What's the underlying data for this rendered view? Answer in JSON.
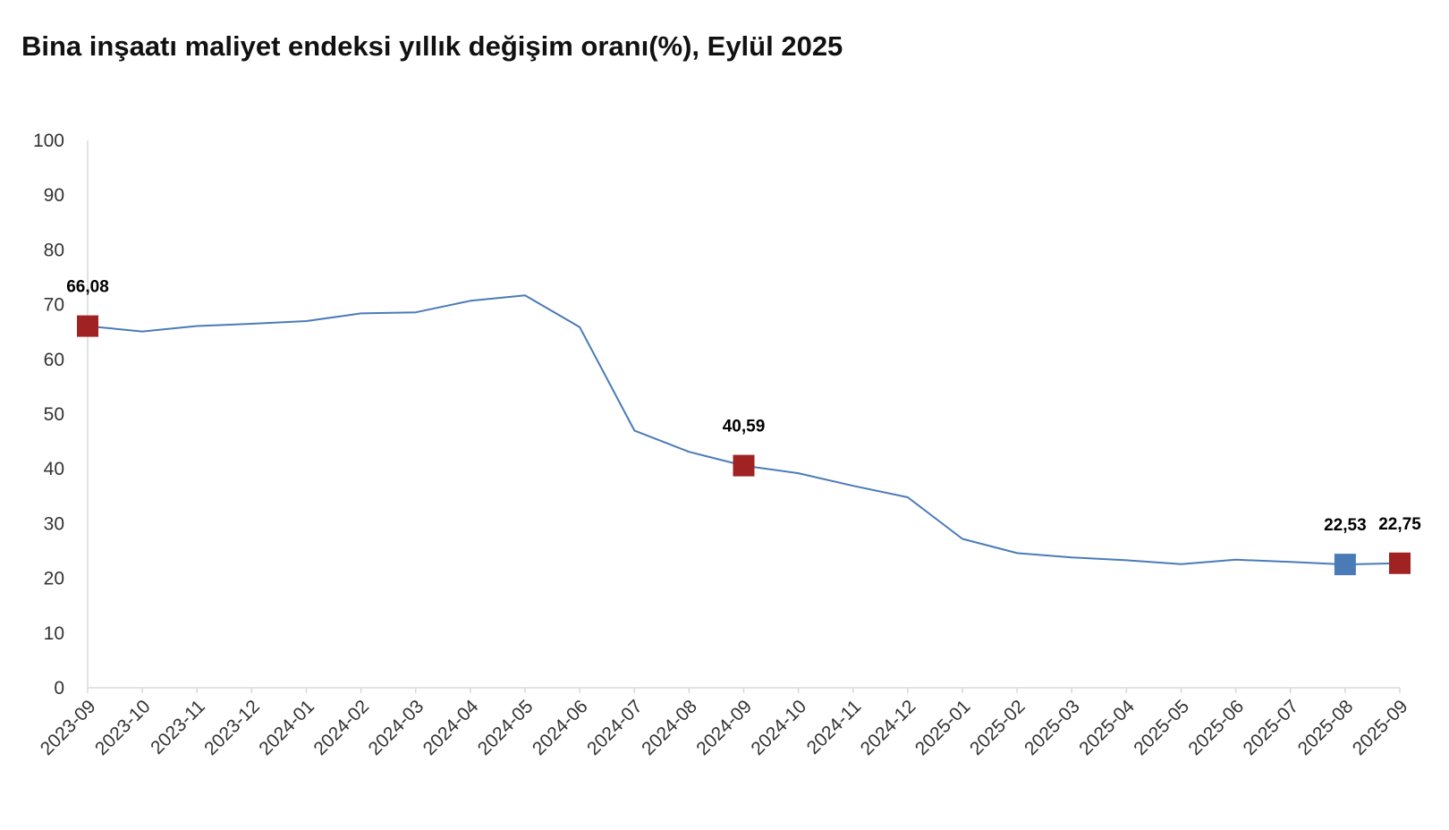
{
  "title": "Bina inşaatı maliyet endeksi yıllık değişim oranı(%), Eylül 2025",
  "colors": {
    "line": "#4a7bb7",
    "highlight_red": "#a02222",
    "highlight_blue": "#4a7bb7",
    "axis": "#d9d9d9",
    "text": "#333333",
    "label": "#000000"
  },
  "chart_data": {
    "type": "line",
    "title": "Bina inşaatı maliyet endeksi yıllık değişim oranı(%), Eylül 2025",
    "xlabel": "",
    "ylabel": "",
    "ylim": [
      0,
      100
    ],
    "yticks": [
      0,
      10,
      20,
      30,
      40,
      50,
      60,
      70,
      80,
      90,
      100
    ],
    "grid": false,
    "categories": [
      "2023-09",
      "2023-10",
      "2023-11",
      "2023-12",
      "2024-01",
      "2024-02",
      "2024-03",
      "2024-04",
      "2024-05",
      "2024-06",
      "2024-07",
      "2024-08",
      "2024-09",
      "2024-10",
      "2024-11",
      "2024-12",
      "2025-01",
      "2025-02",
      "2025-03",
      "2025-04",
      "2025-05",
      "2025-06",
      "2025-07",
      "2025-08",
      "2025-09"
    ],
    "series": [
      {
        "values": [
          66.08,
          65.1,
          66.1,
          66.5,
          67.0,
          68.4,
          68.6,
          70.7,
          71.7,
          65.9,
          47.0,
          43.1,
          40.59,
          39.2,
          36.9,
          34.8,
          27.2,
          24.6,
          23.8,
          23.3,
          22.6,
          23.4,
          23.0,
          22.53,
          22.75
        ]
      }
    ],
    "highlights": [
      {
        "index": 0,
        "label": "66,08",
        "color": "red"
      },
      {
        "index": 12,
        "label": "40,59",
        "color": "red"
      },
      {
        "index": 23,
        "label": "22,53",
        "color": "blue"
      },
      {
        "index": 24,
        "label": "22,75",
        "color": "red"
      }
    ]
  }
}
